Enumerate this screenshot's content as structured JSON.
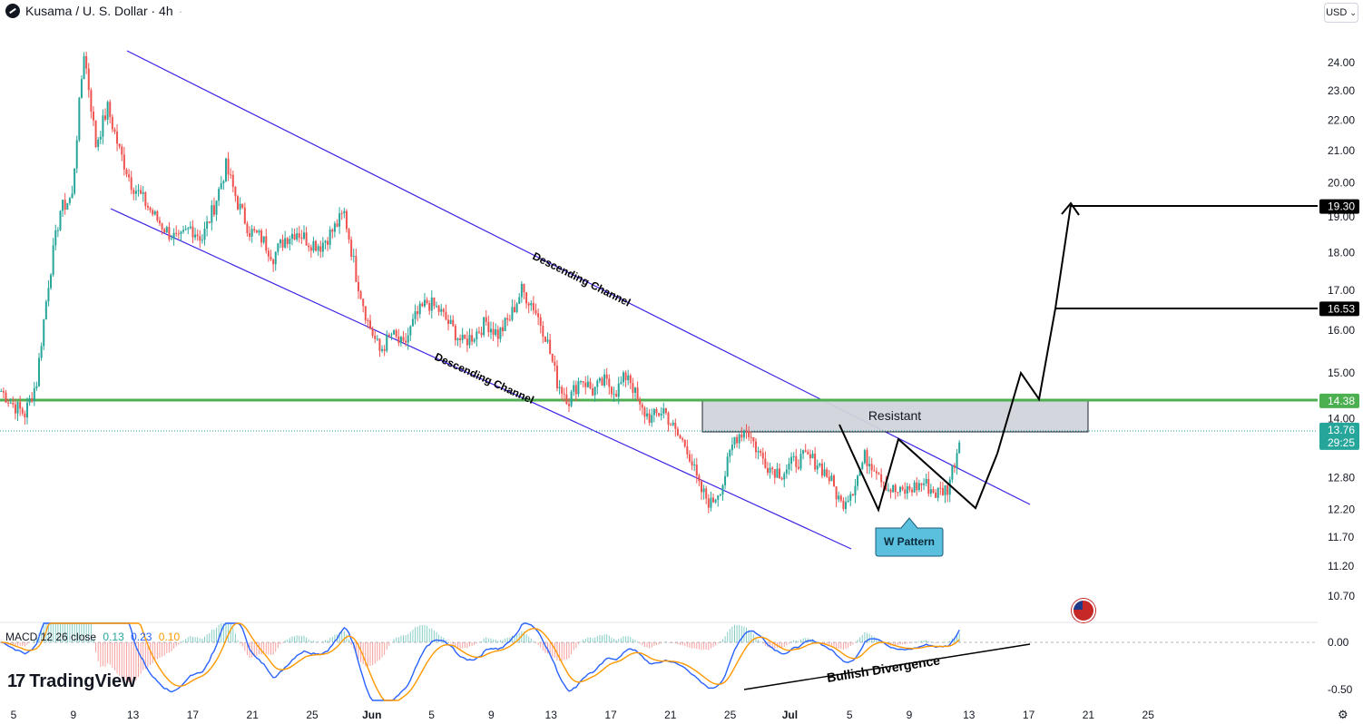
{
  "header": {
    "title": "Kusama / U. S. Dollar · 4h",
    "dot": "·"
  },
  "currency": {
    "label": "USD",
    "caret": "⌄"
  },
  "colors": {
    "up": "#26a69a",
    "down": "#ef5350",
    "support": "#4caf50",
    "channel": "#3a22e6",
    "macd": "#2962ff",
    "signal": "#ff9800"
  },
  "icons": {
    "symbol": "kusama-logo-icon",
    "settings": "gear-icon",
    "flag": "us-flag-icon"
  },
  "chart_data": {
    "type": "line",
    "title": "Kusama / U. S. Dollar · 4h",
    "x_ticks": [
      "5",
      "9",
      "13",
      "17",
      "21",
      "25",
      "Jun",
      "5",
      "9",
      "13",
      "17",
      "21",
      "25",
      "Jul",
      "5",
      "9",
      "13",
      "17",
      "21",
      "25"
    ],
    "y_ticks": [
      "24.00",
      "23.00",
      "22.00",
      "21.00",
      "20.00",
      "19.00",
      "18.00",
      "17.00",
      "16.00",
      "15.00",
      "14.00",
      "12.80",
      "12.20",
      "11.70",
      "11.20",
      "10.70"
    ],
    "y_scale": "log",
    "price_path": [
      [
        0,
        14.6
      ],
      [
        3,
        14.3
      ],
      [
        5,
        14.1
      ],
      [
        7,
        14.8
      ],
      [
        8,
        17.2
      ],
      [
        9,
        19.2
      ],
      [
        10,
        19.6
      ],
      [
        11,
        24.4
      ],
      [
        12,
        21.2
      ],
      [
        13,
        22.4
      ],
      [
        14,
        21.0
      ],
      [
        15,
        20.0
      ],
      [
        16,
        19.5
      ],
      [
        17,
        19.0
      ],
      [
        18,
        18.6
      ],
      [
        19,
        18.3
      ],
      [
        20,
        18.7
      ],
      [
        21,
        18.4
      ],
      [
        22,
        19.3
      ],
      [
        23,
        20.5
      ],
      [
        24,
        19.4
      ],
      [
        25,
        18.6
      ],
      [
        26,
        18.4
      ],
      [
        27,
        17.9
      ],
      [
        28,
        18.4
      ],
      [
        29,
        18.6
      ],
      [
        30,
        18.3
      ],
      [
        31,
        18.2
      ],
      [
        32,
        18.6
      ],
      [
        33,
        19.1
      ],
      [
        34,
        17.4
      ],
      [
        35,
        16.2
      ],
      [
        36,
        15.5
      ],
      [
        37,
        15.9
      ],
      [
        38,
        15.6
      ],
      [
        39,
        16.3
      ],
      [
        40,
        16.7
      ],
      [
        41,
        16.5
      ],
      [
        42,
        16.1
      ],
      [
        43,
        15.7
      ],
      [
        44,
        15.9
      ],
      [
        45,
        16.2
      ],
      [
        46,
        15.9
      ],
      [
        47,
        16.3
      ],
      [
        48,
        17.0
      ],
      [
        49,
        16.6
      ],
      [
        50,
        15.9
      ],
      [
        51,
        14.8
      ],
      [
        52,
        14.4
      ],
      [
        53,
        14.9
      ],
      [
        54,
        14.6
      ],
      [
        55,
        14.8
      ],
      [
        56,
        14.6
      ],
      [
        57,
        15.0
      ],
      [
        58,
        14.2
      ],
      [
        59,
        14.0
      ],
      [
        60,
        14.2
      ],
      [
        61,
        13.7
      ],
      [
        62,
        13.4
      ],
      [
        63,
        12.6
      ],
      [
        64,
        12.3
      ],
      [
        65,
        12.7
      ],
      [
        66,
        13.6
      ],
      [
        67,
        13.8
      ],
      [
        68,
        13.3
      ],
      [
        69,
        13.0
      ],
      [
        70,
        12.9
      ],
      [
        71,
        13.1
      ],
      [
        72,
        13.2
      ],
      [
        73,
        13.1
      ],
      [
        74,
        12.8
      ],
      [
        75,
        12.3
      ],
      [
        76,
        12.6
      ],
      [
        77,
        13.2
      ],
      [
        78,
        13.0
      ],
      [
        79,
        12.6
      ],
      [
        80,
        12.5
      ],
      [
        81,
        12.6
      ],
      [
        82,
        12.7
      ],
      [
        83,
        12.5
      ],
      [
        84,
        12.6
      ],
      [
        85,
        13.5
      ]
    ],
    "price_labels": [
      {
        "price": "19.30",
        "bg": "#000000"
      },
      {
        "price": "16.53",
        "bg": "#000000"
      },
      {
        "price": "14.38",
        "bg": "#4caf50"
      },
      {
        "price": "13.76",
        "sub": "29:25",
        "bg": "#26a69a"
      }
    ],
    "annotations": {
      "channel_label": "Descending Channel",
      "channel_label_lower": "Descending Channel",
      "zone_label": "Resistant",
      "pattern_label": "W Pattern",
      "divergence_label": "Bullish Divergence"
    },
    "macd": {
      "legend_name": "MACD 12 26 close",
      "values": [
        "0.13",
        "0.23",
        "0.10"
      ],
      "y_ticks": [
        "0.00",
        "-0.50"
      ]
    }
  },
  "watermark": "TradingView"
}
